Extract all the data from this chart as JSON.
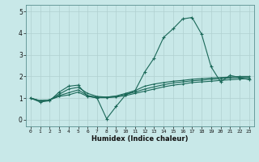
{
  "title": "",
  "xlabel": "Humidex (Indice chaleur)",
  "bg_color": "#c8e8e8",
  "grid_color": "#b0d0d0",
  "line_color": "#1a6858",
  "xlim": [
    -0.5,
    23.5
  ],
  "ylim": [
    -0.3,
    5.3
  ],
  "xticks": [
    0,
    1,
    2,
    3,
    4,
    5,
    6,
    7,
    8,
    9,
    10,
    11,
    12,
    13,
    14,
    15,
    16,
    17,
    18,
    19,
    20,
    21,
    22,
    23
  ],
  "yticks": [
    0,
    1,
    2,
    3,
    4,
    5
  ],
  "series_main": [
    1.0,
    0.82,
    0.88,
    1.28,
    1.55,
    1.6,
    1.1,
    1.0,
    0.05,
    0.62,
    1.15,
    1.35,
    2.2,
    2.85,
    3.8,
    4.2,
    4.65,
    4.72,
    3.95,
    2.45,
    1.75,
    2.05,
    1.95,
    1.85
  ],
  "series_a": [
    1.0,
    0.88,
    0.92,
    1.08,
    1.15,
    1.28,
    1.08,
    1.02,
    1.02,
    1.05,
    1.12,
    1.22,
    1.32,
    1.42,
    1.52,
    1.6,
    1.65,
    1.72,
    1.75,
    1.78,
    1.82,
    1.85,
    1.88,
    1.9
  ],
  "series_b": [
    1.0,
    0.88,
    0.92,
    1.12,
    1.25,
    1.38,
    1.12,
    1.05,
    1.05,
    1.08,
    1.18,
    1.28,
    1.42,
    1.52,
    1.62,
    1.7,
    1.75,
    1.8,
    1.83,
    1.87,
    1.9,
    1.93,
    1.95,
    1.95
  ],
  "series_c": [
    1.0,
    0.88,
    0.92,
    1.18,
    1.42,
    1.5,
    1.22,
    1.08,
    1.05,
    1.1,
    1.22,
    1.35,
    1.55,
    1.65,
    1.72,
    1.78,
    1.82,
    1.87,
    1.9,
    1.93,
    1.95,
    1.97,
    2.0,
    2.0
  ],
  "markersize": 1.8,
  "linewidth": 0.8
}
